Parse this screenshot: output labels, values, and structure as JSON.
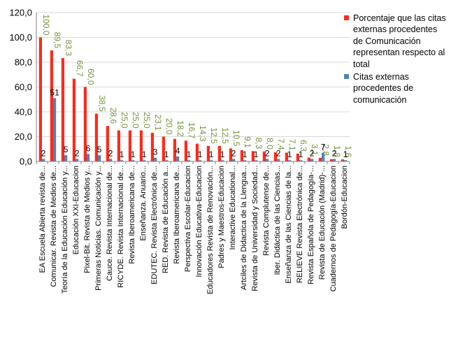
{
  "chart_data": {
    "type": "bar",
    "ylim": [
      0,
      120
    ],
    "yticks": [
      "0,0",
      "20,0",
      "40,0",
      "60,0",
      "80,0",
      "100,0",
      "120,0"
    ],
    "categories": [
      "EA Escuela Abierta revista de...",
      "Comunicar. Revista de Medios de...",
      "Teoría de la Educación Educación y...",
      "Educación XXI-Educacion",
      "Pixel-Bit. Revista de Medios y...",
      "Primeras Noticias. Comunicación y...",
      "Cauce. Revista Internacional de...",
      "RICYDE. Revista Internacional de...",
      "Revista Iberoamericana de...",
      "Enseñanza. Anuario...",
      "EDUTEC. Revista Electrónica de...",
      "RED. Revista de Educación a...",
      "Revista Iberoamericana de...",
      "Perspectiva Escolar-Educacion",
      "Innovación Educativa-Educacion",
      "Educadores Revista de Renovación...",
      "Padres y Maestros-Educacion",
      "Interactive Educational...",
      "Artciles de Didactica de la Llengua...",
      "Revista de Universidad y Sociedad...",
      "Revista Complutense de...",
      "Iber. Didáctica de las Ciencias...",
      "Enseñanza de las Ciencias de la...",
      "RELIEVE Revista Electrónica de...",
      "Revista Española de Pedagogía-...",
      "Revista de Educación (Madrid)-...",
      "Cuadernos de Pedagogía-Educacion",
      "Bordón-Educacion"
    ],
    "series": [
      {
        "name": "Porcentaje que las citas externas procedentes de Comunicación representan respecto al total",
        "color": "#ff2a1a",
        "values": [
          100.0,
          89.5,
          83.3,
          66.7,
          60.0,
          38.5,
          28.6,
          25.0,
          25.0,
          25.0,
          23.1,
          20.0,
          18.2,
          16.7,
          14.3,
          12.5,
          12.5,
          10.5,
          9.1,
          8.3,
          8.0,
          7.4,
          7.1,
          6.3,
          3.1,
          2.8,
          1.8,
          1.6
        ],
        "labels": [
          "100,0",
          "89,5",
          "83,3",
          "66,7",
          "60,0",
          "38,5",
          "28,6",
          "25,0",
          "25,0",
          "25,0",
          "23,1",
          "20,0",
          "18,2",
          "16,7",
          "14,3",
          "12,5",
          "12,5",
          "10,5",
          "9,1",
          "8,3",
          "8,0",
          "7,4",
          "7,1",
          "6,3",
          "3,1",
          "2,8",
          "1,8",
          "1,6"
        ],
        "label_color": "#76923c"
      },
      {
        "name": "Citas externas procedentes de comunicación",
        "color": "#4f81bd",
        "values": [
          2,
          51,
          5,
          2,
          6,
          5,
          2,
          1,
          1,
          1,
          3,
          1,
          4,
          1,
          1,
          1,
          1,
          2,
          1,
          1,
          2,
          2,
          1,
          1,
          2,
          7,
          2,
          1
        ],
        "labels": [
          "2",
          "51",
          "5",
          "2",
          "6",
          "5",
          "2",
          "1",
          "1",
          "1",
          "3",
          "1",
          "4",
          "1",
          "1",
          "1",
          "1",
          "2",
          "1",
          "1",
          "2",
          "2",
          "1",
          "1",
          "2",
          "7",
          "2",
          "1"
        ],
        "label_color": "#000000"
      }
    ]
  },
  "legend": {
    "red_label": "Porcentaje que las citas externas procedentes de Comunicación representan respecto al total",
    "blue_label": "Citas externas procedentes de comunicación"
  }
}
